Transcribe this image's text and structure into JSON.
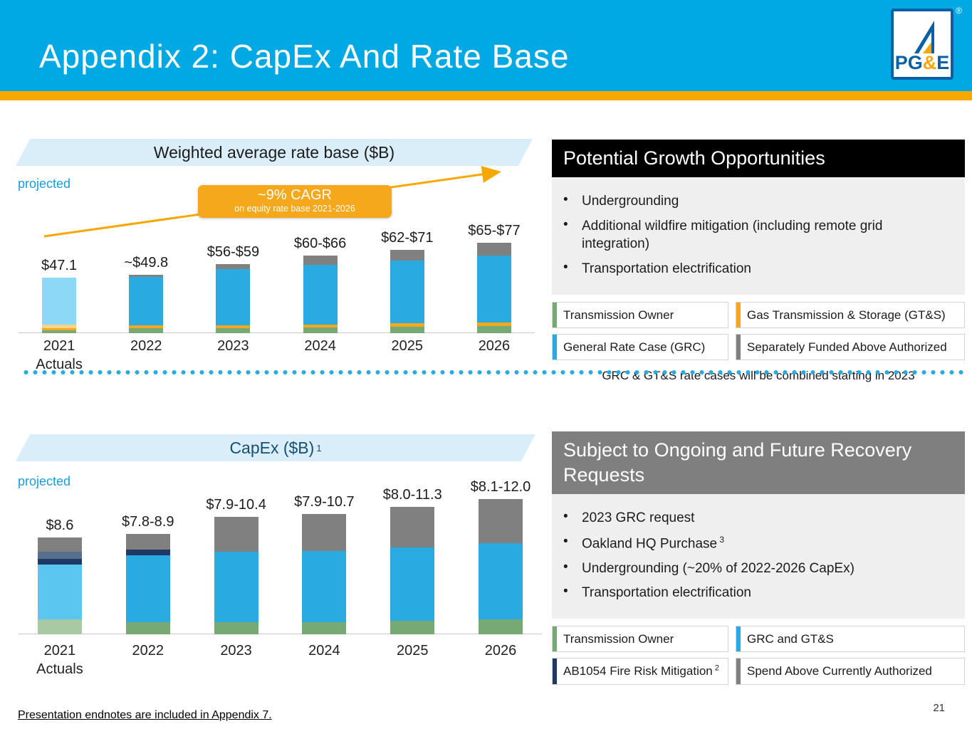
{
  "header": {
    "title": "Appendix 2: CapEx And Rate Base",
    "logo": {
      "text_pg": "PG",
      "text_amp": "&",
      "text_e": "E",
      "registered": "®"
    }
  },
  "chart_data": [
    {
      "type": "bar",
      "stacked": true,
      "title": "Weighted average rate base ($B)",
      "projected_label": "projected",
      "categories": [
        [
          "2021",
          "Actuals"
        ],
        [
          "2022"
        ],
        [
          "2023"
        ],
        [
          "2024"
        ],
        [
          "2025"
        ],
        [
          "2026"
        ]
      ],
      "bar_labels": [
        "$47.1",
        "~$49.8",
        "$56-$59",
        "$60-$66",
        "$62-$71",
        "$65-$77"
      ],
      "series": [
        {
          "name": "Transmission Owner",
          "color": "#76A973",
          "values": [
            2.5,
            4,
            4,
            5,
            5.5,
            6
          ]
        },
        {
          "name": "Gas Transmission & Storage (GT&S)",
          "color": "#F5A81C",
          "values": [
            2,
            3,
            2.5,
            2.5,
            3,
            3
          ]
        },
        {
          "name": "unlabeled-2021-band",
          "color": "#F7D488",
          "values": [
            2.6,
            0,
            0,
            0,
            0,
            0
          ]
        },
        {
          "name": "General Rate Case (GRC)",
          "color": "#29ABE2",
          "color_overrides": {
            "0": "#8DD7F7"
          },
          "values": [
            40,
            40.8,
            48,
            51,
            53.5,
            57
          ]
        },
        {
          "name": "Separately Funded Above Authorized",
          "color": "#808080",
          "values": [
            0,
            2,
            4.5,
            7.5,
            9,
            11
          ]
        }
      ],
      "annotation": {
        "title": "~9% CAGR",
        "subtitle": "on equity rate base 2021-2026"
      },
      "ylim": [
        0,
        80
      ],
      "legend_position": "right-panel"
    },
    {
      "type": "bar",
      "stacked": true,
      "title": "CapEx ($B)",
      "title_sup": "1",
      "projected_label": "projected",
      "categories": [
        [
          "2021",
          "Actuals"
        ],
        [
          "2022"
        ],
        [
          "2023"
        ],
        [
          "2024"
        ],
        [
          "2025"
        ],
        [
          "2026"
        ]
      ],
      "bar_labels": [
        "$8.6",
        "$7.8-8.9",
        "$7.9-10.4",
        "$7.9-10.7",
        "$8.0-11.3",
        "$8.1-12.0"
      ],
      "series": [
        {
          "name": "Transmission Owner",
          "color": "#76A973",
          "color_overrides": {
            "0": "#A9C9A4"
          },
          "values": [
            1.3,
            1.1,
            1.1,
            1.1,
            1.2,
            1.3
          ]
        },
        {
          "name": "GRC and GT&S",
          "color": "#29ABE2",
          "color_overrides": {
            "0": "#5BC6F0"
          },
          "values": [
            4.9,
            5.9,
            6.2,
            6.3,
            6.5,
            6.8
          ]
        },
        {
          "name": "AB1054 Fire Risk Mitigation",
          "color": "#1F3864",
          "values": [
            0.5,
            0.5,
            0,
            0,
            0,
            0
          ]
        },
        {
          "name": "unlabeled-2021-band",
          "color": "#566F8F",
          "values": [
            0.6,
            0,
            0,
            0,
            0,
            0
          ]
        },
        {
          "name": "Spend Above Currently Authorized",
          "color": "#808080",
          "values": [
            1.3,
            1.4,
            3.1,
            3.3,
            3.6,
            3.9
          ]
        }
      ],
      "ylim": [
        0,
        12
      ],
      "legend_position": "right-panel"
    }
  ],
  "growth_panel": {
    "title": "Potential Growth Opportunities",
    "bullets": [
      {
        "text": "Undergrounding"
      },
      {
        "text": "Additional wildfire mitigation (including remote grid integration)"
      },
      {
        "text": "Transportation electrification"
      }
    ],
    "legend": [
      {
        "label": "Transmission Owner",
        "color": "#76A973"
      },
      {
        "label": "Gas Transmission & Storage (GT&S)",
        "color": "#F5A81C"
      },
      {
        "label": "General Rate Case (GRC)",
        "color": "#29ABE2"
      },
      {
        "label": "Separately Funded Above Authorized",
        "color": "#808080"
      }
    ],
    "note": "GRC & GT&S rate cases will be combined starting in 2023"
  },
  "recovery_panel": {
    "title": "Subject to Ongoing and Future Recovery Requests",
    "bullets": [
      {
        "text": "2023 GRC request"
      },
      {
        "text": "Oakland HQ Purchase",
        "sup": "3"
      },
      {
        "text": "Undergrounding (~20% of 2022-2026 CapEx)"
      },
      {
        "text": "Transportation electrification"
      }
    ],
    "legend": [
      {
        "label": "Transmission Owner",
        "color": "#76A973"
      },
      {
        "label": "GRC and GT&S",
        "color": "#29ABE2"
      },
      {
        "label": "AB1054 Fire Risk Mitigation",
        "sup": "2",
        "color": "#1F3864"
      },
      {
        "label": "Spend Above Currently Authorized",
        "color": "#808080"
      }
    ]
  },
  "footer": {
    "endnote": "Presentation endnotes are included in Appendix 7.",
    "page_number": "21"
  }
}
